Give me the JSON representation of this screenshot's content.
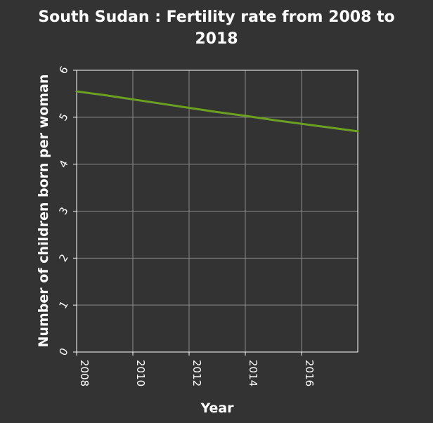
{
  "chart_data": {
    "type": "line",
    "title_line1": "South Sudan : Fertility rate from 2008 to",
    "title_line2": "2018",
    "xlabel": "Year",
    "ylabel": "Number of children born per woman",
    "xlim": [
      2008,
      2018
    ],
    "ylim": [
      0,
      6
    ],
    "x_ticks": [
      2008,
      2010,
      2012,
      2014,
      2016
    ],
    "y_ticks": [
      0,
      1,
      2,
      3,
      4,
      5,
      6
    ],
    "grid": true,
    "series": [
      {
        "color": "#6aa121",
        "x": [
          2008,
          2009,
          2010,
          2011,
          2012,
          2013,
          2014,
          2015,
          2016,
          2017,
          2018
        ],
        "values": [
          5.55,
          5.47,
          5.38,
          5.29,
          5.2,
          5.11,
          5.03,
          4.94,
          4.86,
          4.78,
          4.7
        ]
      }
    ]
  }
}
